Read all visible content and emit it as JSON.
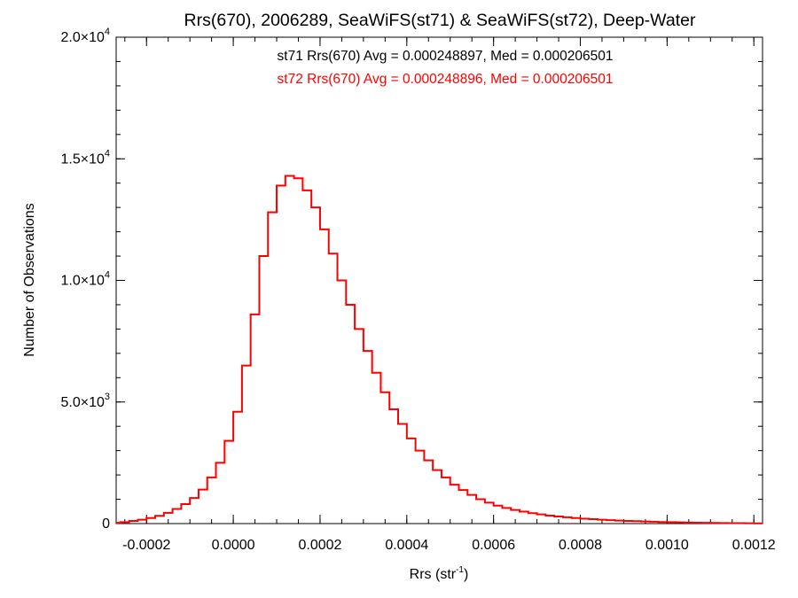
{
  "chart_data": {
    "type": "line",
    "title": "Rrs(670), 2006289, SeaWiFS(st71) & SeaWiFS(st72), Deep-Water",
    "xlabel": "Rrs (str",
    "xlabel_sup": "-1",
    "xlabel_close": ")",
    "ylabel": "Number of Observations",
    "xlim": [
      -0.00027,
      0.00122
    ],
    "ylim": [
      0,
      20000
    ],
    "grid": false,
    "x_ticks": [
      -0.0002,
      0.0,
      0.0002,
      0.0004,
      0.0006,
      0.0008,
      0.001,
      0.0012
    ],
    "x_tick_labels": [
      "-0.0002",
      "0.0000",
      "0.0002",
      "0.0004",
      "0.0006",
      "0.0008",
      "0.0010",
      "0.0012"
    ],
    "y_ticks": [
      0,
      5000,
      10000,
      15000,
      20000
    ],
    "y_tick_labels": [
      {
        "mant": "0",
        "exp": ""
      },
      {
        "mant": "5.0×10",
        "exp": "3"
      },
      {
        "mant": "1.0×10",
        "exp": "4"
      },
      {
        "mant": "1.5×10",
        "exp": "4"
      },
      {
        "mant": "2.0×10",
        "exp": "4"
      }
    ],
    "annotations": [
      {
        "text": "st71 Rrs(670) Avg = 0.000248897, Med = 0.000206501",
        "color": "#000000"
      },
      {
        "text": "st72 Rrs(670) Avg = 0.000248896, Med = 0.000206501",
        "color": "#ff0000"
      }
    ],
    "series": [
      {
        "color": "#ff0000",
        "step": true,
        "x": [
          -0.00027,
          -0.00025,
          -0.00023,
          -0.00021,
          -0.00019,
          -0.00017,
          -0.00015,
          -0.00013,
          -0.00011,
          -9e-05,
          -7e-05,
          -5e-05,
          -3e-05,
          -1e-05,
          1e-05,
          3e-05,
          5e-05,
          7e-05,
          9e-05,
          0.00011,
          0.00013,
          0.00015,
          0.00017,
          0.00019,
          0.00021,
          0.00023,
          0.00025,
          0.00027,
          0.00029,
          0.00031,
          0.00033,
          0.00035,
          0.00037,
          0.00039,
          0.00041,
          0.00043,
          0.00045,
          0.00047,
          0.00049,
          0.00051,
          0.00053,
          0.00055,
          0.00057,
          0.00059,
          0.00061,
          0.00063,
          0.00065,
          0.00067,
          0.00069,
          0.00071,
          0.00073,
          0.00075,
          0.00077,
          0.00079,
          0.00081,
          0.00083,
          0.00085,
          0.00087,
          0.00089,
          0.00091,
          0.00093,
          0.00095,
          0.00097,
          0.00099,
          0.00101,
          0.00103,
          0.00105,
          0.00107,
          0.00109,
          0.00111,
          0.00113,
          0.00115,
          0.00117,
          0.00119,
          0.00121
        ],
        "values": [
          30,
          60,
          110,
          160,
          230,
          320,
          440,
          600,
          800,
          1050,
          1400,
          1900,
          2500,
          3400,
          4600,
          6500,
          8600,
          11000,
          12800,
          13900,
          14300,
          14200,
          13700,
          13000,
          12100,
          11100,
          10000,
          9000,
          8000,
          7100,
          6200,
          5400,
          4700,
          4100,
          3500,
          3000,
          2600,
          2200,
          1900,
          1600,
          1380,
          1180,
          1000,
          860,
          740,
          640,
          560,
          490,
          430,
          380,
          330,
          290,
          260,
          230,
          200,
          180,
          160,
          140,
          125,
          110,
          98,
          86,
          76,
          66,
          58,
          50,
          43,
          37,
          32,
          27,
          23,
          19,
          16,
          13,
          10
        ]
      }
    ]
  }
}
